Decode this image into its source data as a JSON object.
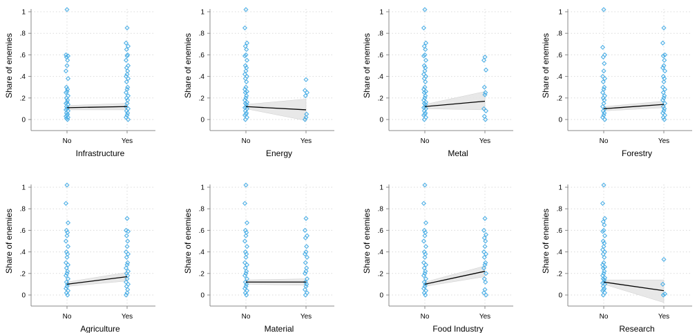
{
  "colors": {
    "points": "#4fb0e6",
    "fit_line": "#000000",
    "ci_band": "#e6e6e6",
    "grid": "#d9d9d9",
    "axis": "#888888"
  },
  "chart_data": [
    {
      "type": "scatter",
      "xlabel": "Infrastructure",
      "ylabel": "Share of enemies",
      "categories": [
        "No",
        "Yes"
      ],
      "yticks": [
        "0",
        ".2",
        ".4",
        ".6",
        ".8",
        "1"
      ],
      "ylim": [
        0,
        1
      ],
      "fit": {
        "y": [
          0.11,
          0.12
        ],
        "ci_low": [
          0.09,
          0.09
        ],
        "ci_high": [
          0.13,
          0.15
        ]
      },
      "points": {
        "No": [
          1.02,
          0.6,
          0.59,
          0.58,
          0.55,
          0.5,
          0.45,
          0.38,
          0.3,
          0.28,
          0.26,
          0.25,
          0.22,
          0.2,
          0.18,
          0.16,
          0.15,
          0.14,
          0.12,
          0.11,
          0.1,
          0.09,
          0.08,
          0.06,
          0.05,
          0.04,
          0.03,
          0.02,
          0.01,
          0
        ],
        "Yes": [
          0.85,
          0.71,
          0.68,
          0.65,
          0.6,
          0.59,
          0.55,
          0.5,
          0.48,
          0.45,
          0.42,
          0.4,
          0.38,
          0.35,
          0.3,
          0.28,
          0.25,
          0.22,
          0.2,
          0.18,
          0.15,
          0.12,
          0.1,
          0.08,
          0.06,
          0.04,
          0.02,
          0
        ]
      }
    },
    {
      "type": "scatter",
      "xlabel": "Energy",
      "ylabel": "Share of enemies",
      "categories": [
        "No",
        "Yes"
      ],
      "yticks": [
        "0",
        ".2",
        ".4",
        ".6",
        ".8",
        "1"
      ],
      "ylim": [
        0,
        1
      ],
      "fit": {
        "y": [
          0.12,
          0.09
        ],
        "ci_low": [
          0.1,
          -0.01
        ],
        "ci_high": [
          0.14,
          0.19
        ]
      },
      "points": {
        "No": [
          1.02,
          0.85,
          0.71,
          0.68,
          0.65,
          0.6,
          0.59,
          0.55,
          0.5,
          0.48,
          0.45,
          0.42,
          0.4,
          0.38,
          0.35,
          0.3,
          0.28,
          0.26,
          0.25,
          0.22,
          0.2,
          0.18,
          0.16,
          0.15,
          0.14,
          0.12,
          0.11,
          0.1,
          0.08,
          0.06,
          0.05,
          0.04,
          0.02,
          0
        ],
        "Yes": [
          0.37,
          0.27,
          0.25,
          0.22,
          0.05,
          0.02,
          0
        ]
      }
    },
    {
      "type": "scatter",
      "xlabel": "Metal",
      "ylabel": "Share of enemies",
      "categories": [
        "No",
        "Yes"
      ],
      "yticks": [
        "0",
        ".2",
        ".4",
        ".6",
        ".8",
        "1"
      ],
      "ylim": [
        0,
        1
      ],
      "fit": {
        "y": [
          0.12,
          0.17
        ],
        "ci_low": [
          0.1,
          0.09
        ],
        "ci_high": [
          0.14,
          0.26
        ]
      },
      "points": {
        "No": [
          1.02,
          0.85,
          0.71,
          0.68,
          0.65,
          0.6,
          0.59,
          0.55,
          0.5,
          0.48,
          0.45,
          0.42,
          0.4,
          0.38,
          0.35,
          0.3,
          0.28,
          0.26,
          0.25,
          0.22,
          0.2,
          0.18,
          0.16,
          0.15,
          0.14,
          0.12,
          0.11,
          0.1,
          0.08,
          0.06,
          0.05,
          0.04,
          0.02,
          0
        ],
        "Yes": [
          0.58,
          0.55,
          0.46,
          0.3,
          0.25,
          0.23,
          0.1,
          0.08,
          0.03,
          0
        ]
      }
    },
    {
      "type": "scatter",
      "xlabel": "Forestry",
      "ylabel": "Share of enemies",
      "categories": [
        "No",
        "Yes"
      ],
      "yticks": [
        "0",
        ".2",
        ".4",
        ".6",
        ".8",
        "1"
      ],
      "ylim": [
        0,
        1
      ],
      "fit": {
        "y": [
          0.1,
          0.14
        ],
        "ci_low": [
          0.08,
          0.11
        ],
        "ci_high": [
          0.12,
          0.17
        ]
      },
      "points": {
        "No": [
          1.02,
          0.67,
          0.6,
          0.58,
          0.52,
          0.45,
          0.4,
          0.38,
          0.35,
          0.3,
          0.28,
          0.25,
          0.22,
          0.2,
          0.18,
          0.15,
          0.12,
          0.1,
          0.08,
          0.06,
          0.04,
          0.02,
          0
        ],
        "Yes": [
          0.85,
          0.71,
          0.6,
          0.59,
          0.55,
          0.5,
          0.48,
          0.45,
          0.4,
          0.38,
          0.35,
          0.3,
          0.28,
          0.25,
          0.22,
          0.2,
          0.18,
          0.15,
          0.12,
          0.1,
          0.08,
          0.06,
          0.04,
          0.02,
          0
        ]
      }
    },
    {
      "type": "scatter",
      "xlabel": "Agriculture",
      "ylabel": "Share of enemies",
      "categories": [
        "No",
        "Yes"
      ],
      "yticks": [
        "0",
        ".2",
        ".4",
        ".6",
        ".8",
        "1"
      ],
      "ylim": [
        0,
        1
      ],
      "fit": {
        "y": [
          0.1,
          0.17
        ],
        "ci_low": [
          0.08,
          0.13
        ],
        "ci_high": [
          0.12,
          0.21
        ]
      },
      "points": {
        "No": [
          1.02,
          0.85,
          0.67,
          0.6,
          0.58,
          0.55,
          0.5,
          0.45,
          0.4,
          0.38,
          0.35,
          0.3,
          0.28,
          0.25,
          0.22,
          0.2,
          0.18,
          0.15,
          0.12,
          0.1,
          0.08,
          0.06,
          0.04,
          0.02,
          0
        ],
        "Yes": [
          0.71,
          0.6,
          0.59,
          0.55,
          0.5,
          0.45,
          0.4,
          0.38,
          0.35,
          0.3,
          0.28,
          0.25,
          0.22,
          0.2,
          0.18,
          0.15,
          0.12,
          0.1,
          0.08,
          0.05,
          0.02,
          0
        ]
      }
    },
    {
      "type": "scatter",
      "xlabel": "Material",
      "ylabel": "Share of enemies",
      "categories": [
        "No",
        "Yes"
      ],
      "yticks": [
        "0",
        ".2",
        ".4",
        ".6",
        ".8",
        "1"
      ],
      "ylim": [
        0,
        1
      ],
      "fit": {
        "y": [
          0.12,
          0.12
        ],
        "ci_low": [
          0.1,
          0.09
        ],
        "ci_high": [
          0.14,
          0.15
        ]
      },
      "points": {
        "No": [
          1.02,
          0.85,
          0.67,
          0.6,
          0.58,
          0.55,
          0.5,
          0.45,
          0.4,
          0.38,
          0.35,
          0.3,
          0.28,
          0.25,
          0.22,
          0.2,
          0.18,
          0.15,
          0.12,
          0.1,
          0.08,
          0.06,
          0.04,
          0.02,
          0
        ],
        "Yes": [
          0.71,
          0.6,
          0.55,
          0.53,
          0.45,
          0.4,
          0.38,
          0.35,
          0.3,
          0.25,
          0.22,
          0.2,
          0.15,
          0.12,
          0.1,
          0.08,
          0.05,
          0.02,
          0
        ]
      }
    },
    {
      "type": "scatter",
      "xlabel": "Food Industry",
      "ylabel": "Share of enemies",
      "categories": [
        "No",
        "Yes"
      ],
      "yticks": [
        "0",
        ".2",
        ".4",
        ".6",
        ".8",
        "1"
      ],
      "ylim": [
        0,
        1
      ],
      "fit": {
        "y": [
          0.1,
          0.22
        ],
        "ci_low": [
          0.08,
          0.17
        ],
        "ci_high": [
          0.12,
          0.27
        ]
      },
      "points": {
        "No": [
          1.02,
          0.85,
          0.67,
          0.6,
          0.58,
          0.55,
          0.5,
          0.45,
          0.4,
          0.38,
          0.35,
          0.3,
          0.28,
          0.25,
          0.22,
          0.2,
          0.18,
          0.15,
          0.12,
          0.1,
          0.08,
          0.06,
          0.04,
          0.02,
          0
        ],
        "Yes": [
          0.71,
          0.6,
          0.56,
          0.53,
          0.5,
          0.45,
          0.4,
          0.38,
          0.35,
          0.3,
          0.28,
          0.25,
          0.2,
          0.15,
          0.12,
          0.05,
          0.02,
          0
        ]
      }
    },
    {
      "type": "scatter",
      "xlabel": "Research",
      "ylabel": "Share of enemies",
      "categories": [
        "No",
        "Yes"
      ],
      "yticks": [
        "0",
        ".2",
        ".4",
        ".6",
        ".8",
        "1"
      ],
      "ylim": [
        0,
        1
      ],
      "fit": {
        "y": [
          0.12,
          0.04
        ],
        "ci_low": [
          0.1,
          -0.07
        ],
        "ci_high": [
          0.14,
          0.14
        ]
      },
      "points": {
        "No": [
          1.02,
          0.85,
          0.71,
          0.68,
          0.65,
          0.6,
          0.59,
          0.55,
          0.5,
          0.48,
          0.45,
          0.42,
          0.4,
          0.38,
          0.35,
          0.3,
          0.28,
          0.26,
          0.25,
          0.22,
          0.2,
          0.18,
          0.16,
          0.15,
          0.14,
          0.12,
          0.11,
          0.1,
          0.08,
          0.06,
          0.05,
          0.04,
          0.02,
          0
        ],
        "Yes": [
          0.33,
          0.1,
          0.01,
          0
        ]
      }
    }
  ]
}
